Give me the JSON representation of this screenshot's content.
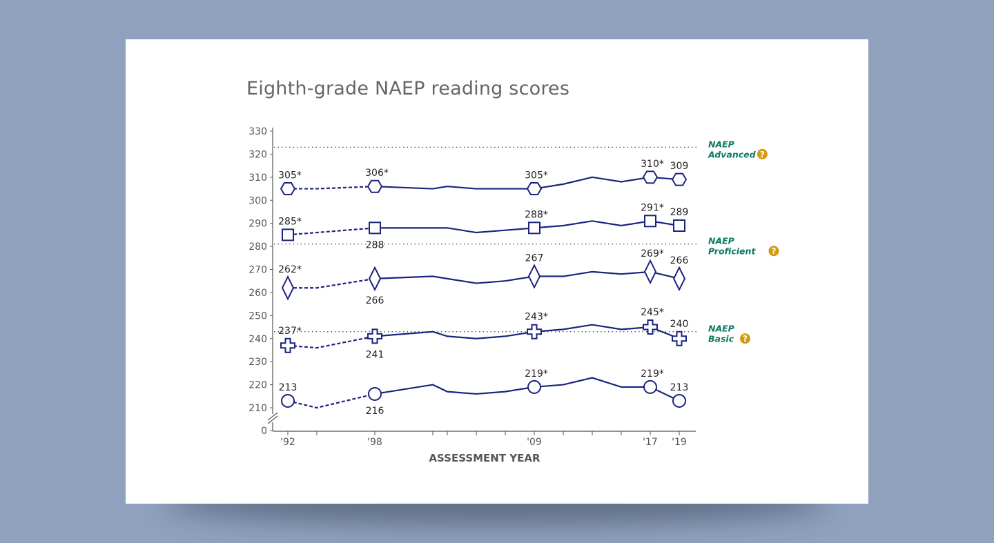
{
  "chart_data": {
    "type": "line",
    "title": "Eighth-grade NAEP reading scores",
    "xlabel": "ASSESSMENT YEAR",
    "ylabel": "",
    "ylim": [
      210,
      330
    ],
    "y_axis_break": true,
    "y_ticks": [
      "0",
      "210",
      "220",
      "230",
      "240",
      "250",
      "260",
      "270",
      "280",
      "290",
      "300",
      "310",
      "320",
      "330"
    ],
    "x_ticks": [
      1992,
      1994,
      1998,
      2002,
      2003,
      2005,
      2007,
      2009,
      2011,
      2013,
      2015,
      2017,
      2019
    ],
    "x_tick_labels": {
      "1992": "'92",
      "1998": "'98",
      "2009": "'09",
      "2017": "'17",
      "2019": "'19"
    },
    "x": [
      1992,
      1994,
      1998,
      2002,
      2003,
      2005,
      2007,
      2009,
      2011,
      2013,
      2015,
      2017,
      2019
    ],
    "dashed_until": 1998,
    "marker_years": [
      1992,
      1998,
      2009,
      2017,
      2019
    ],
    "line_color": "#1a237e",
    "series": [
      {
        "marker": "hexagon",
        "values": [
          305,
          305,
          306,
          305,
          306,
          305,
          305,
          305,
          307,
          310,
          308,
          310,
          309
        ],
        "labels": {
          "1992": "305*",
          "1998": "306*",
          "2009": "305*",
          "2017": "310*",
          "2019": "309"
        },
        "label_below": []
      },
      {
        "marker": "square",
        "values": [
          285,
          286,
          288,
          288,
          288,
          286,
          287,
          288,
          289,
          291,
          289,
          291,
          289
        ],
        "labels": {
          "1992": "285*",
          "1998": "288",
          "2009": "288*",
          "2017": "291*",
          "2019": "289"
        },
        "label_below": [
          1998
        ]
      },
      {
        "marker": "diamond",
        "values": [
          262,
          262,
          266,
          267,
          266,
          264,
          265,
          267,
          267,
          269,
          268,
          269,
          266
        ],
        "labels": {
          "1992": "262*",
          "1998": "266",
          "2009": "267",
          "2017": "269*",
          "2019": "266"
        },
        "label_below": [
          1998
        ]
      },
      {
        "marker": "cross",
        "values": [
          237,
          236,
          241,
          243,
          241,
          240,
          241,
          243,
          244,
          246,
          244,
          245,
          240
        ],
        "labels": {
          "1992": "237*",
          "1998": "241",
          "2009": "243*",
          "2017": "245*",
          "2019": "240"
        },
        "label_below": [
          1998
        ]
      },
      {
        "marker": "circle",
        "values": [
          213,
          210,
          216,
          220,
          217,
          216,
          217,
          219,
          220,
          223,
          219,
          219,
          213
        ],
        "labels": {
          "1992": "213",
          "1998": "216",
          "2009": "219*",
          "2017": "219*",
          "2019": "213"
        },
        "label_below": [
          1998
        ]
      }
    ],
    "reference_lines": [
      {
        "value": 323,
        "line1": "NAEP",
        "line2": "Advanced"
      },
      {
        "value": 281,
        "line1": "NAEP",
        "line2": "Proficient"
      },
      {
        "value": 243,
        "line1": "NAEP",
        "line2": "Basic"
      }
    ],
    "reference_label_color": "#0b7a62",
    "help_icon": "question-circle-icon",
    "help_icon_color": "#d49a12",
    "help_icon_text": "?",
    "grid": false,
    "legend": "none"
  }
}
